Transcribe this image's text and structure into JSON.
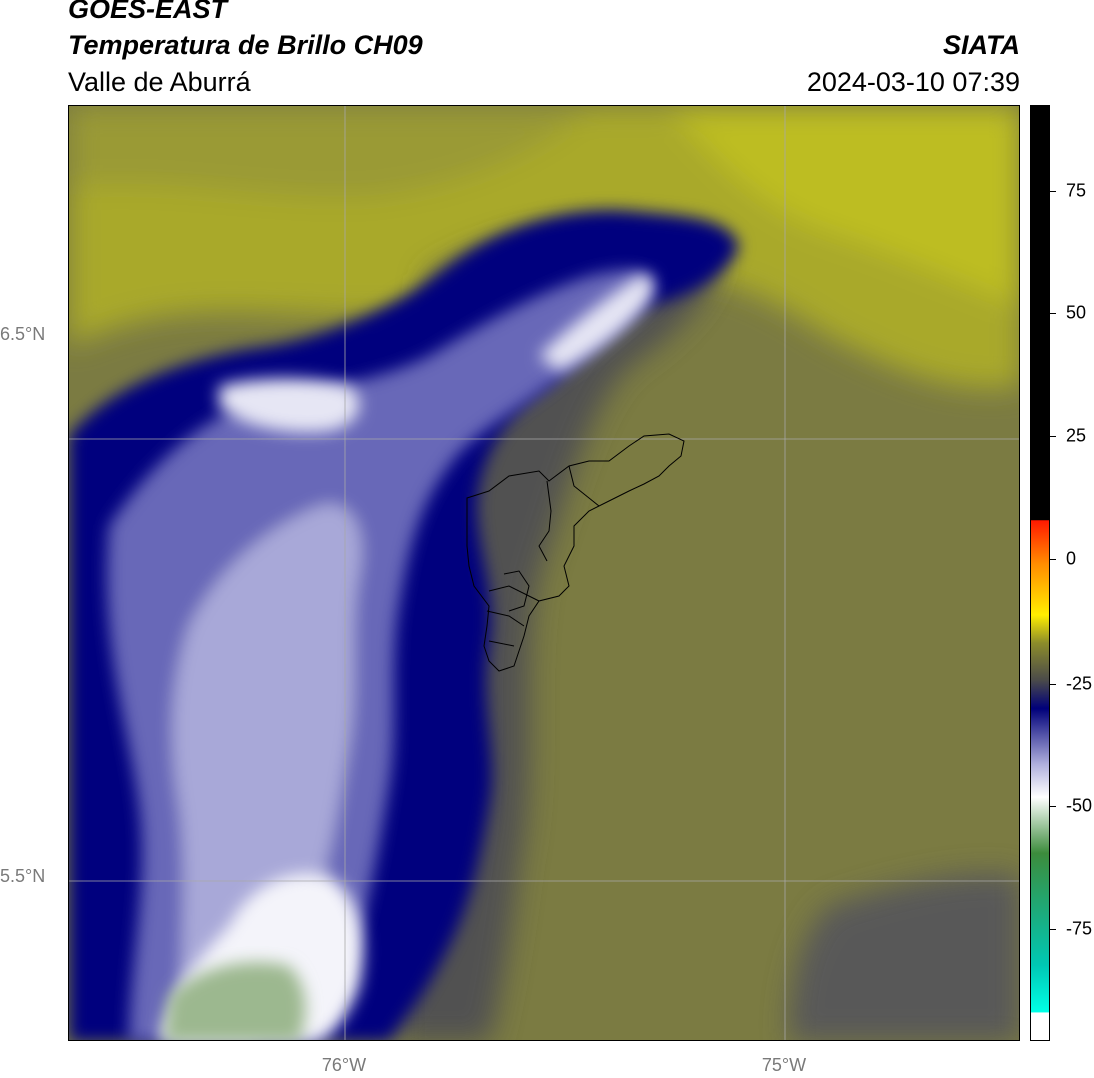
{
  "header": {
    "title": "GOES-EAST",
    "subtitle": "Temperatura de Brillo CH09",
    "region": "Valle de Aburrá",
    "organization": "SIATA",
    "timestamp": "2024-03-10 07:39"
  },
  "map": {
    "lat_labels": [
      "6.5°N",
      "5.5°N"
    ],
    "lon_labels": [
      "76°W",
      "75°W"
    ]
  },
  "colorbar": {
    "ticks": [
      "75",
      "50",
      "25",
      "0",
      "-25",
      "-50",
      "-75"
    ],
    "colors": {
      "black": "#000000",
      "red": "#ff1a00",
      "orange": "#ff8c00",
      "yellow": "#ffee00",
      "olive": "#8c8c2a",
      "dark_gray": "#4a4a4a",
      "navy": "#00007a",
      "lavender": "#b0b0dd",
      "white": "#ffffff",
      "green": "#3c8c3c",
      "teal": "#00c8b4",
      "cyan": "#00ffe6"
    }
  }
}
